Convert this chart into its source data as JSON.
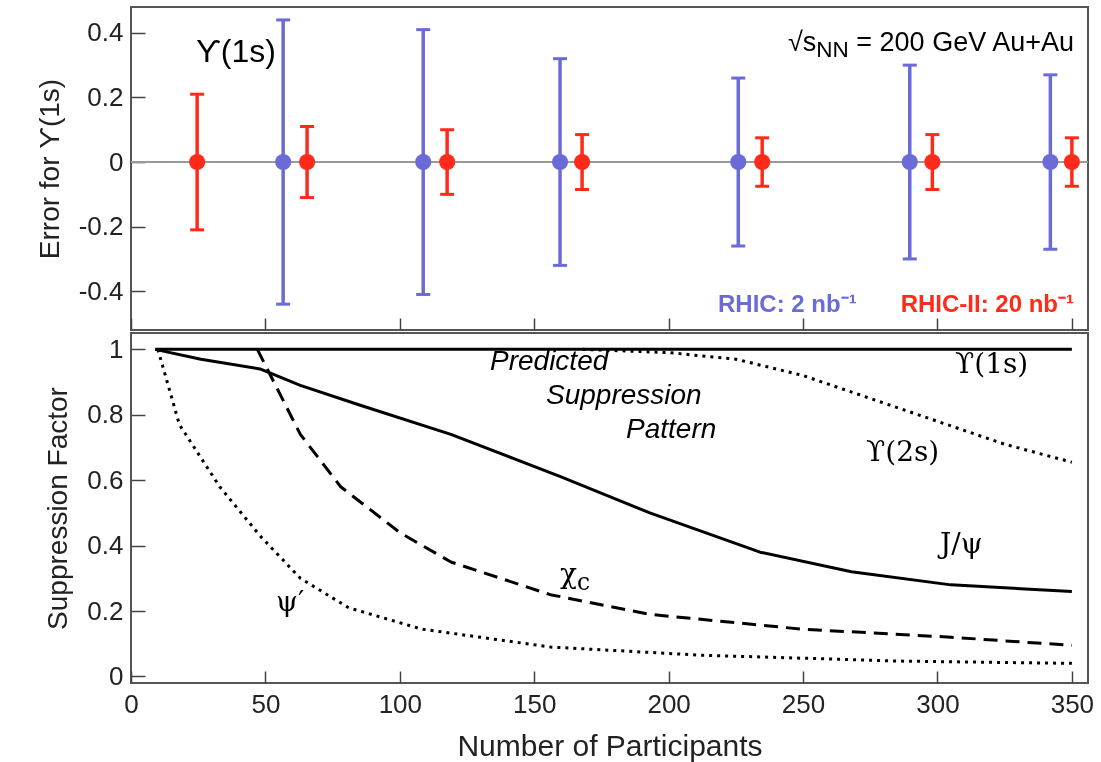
{
  "chart_data": [
    {
      "type": "scatter",
      "ylabel": "Error for ϒ(1s)",
      "xlim": [
        0,
        356
      ],
      "xticks": [
        0,
        50,
        100,
        150,
        200,
        250,
        300,
        350
      ],
      "ylim": [
        -0.52,
        0.48
      ],
      "yticks": [
        -0.4,
        -0.2,
        0,
        0.2,
        0.4
      ],
      "tick_labels": "y",
      "marker": "circle",
      "annotations": [
        "ϒ(1s)",
        "√s$_{NN}$ = 200 GeV Au+Au"
      ],
      "ref_lines": [
        {
          "axis": "y",
          "value": 0,
          "color": "#999999"
        }
      ],
      "series": [
        {
          "name": "RHIC: 2 nb⁻¹",
          "color": "#6b6bd8",
          "x": [
            56.6,
            108.7,
            159.6,
            225.9,
            289.7,
            342
          ],
          "values": [
            0,
            0,
            0,
            0,
            0,
            0
          ],
          "errors": [
            0.44,
            0.41,
            0.32,
            0.26,
            0.3,
            0.27
          ]
        },
        {
          "name": "RHIC-II: 20 nb⁻¹",
          "color": "#ff2a1a",
          "x": [
            24.6,
            65.5,
            117.6,
            167.8,
            234.8,
            298.1,
            350
          ],
          "values": [
            0,
            0,
            0,
            0,
            0,
            0,
            0
          ],
          "errors": [
            0.21,
            0.11,
            0.1,
            0.085,
            0.075,
            0.085,
            0.075
          ]
        }
      ]
    },
    {
      "type": "line",
      "xlabel": "Number of Participants",
      "ylabel": "Suppression Factor",
      "xlim": [
        0,
        356
      ],
      "xticks": [
        0,
        50,
        100,
        150,
        200,
        250,
        300,
        350
      ],
      "ylim": [
        -0.02,
        1.05
      ],
      "yticks": [
        0,
        0.2,
        0.4,
        0.6,
        0.8,
        1
      ],
      "marker": "none",
      "annotations": [
        "Predicted Suppression Pattern"
      ],
      "series": [
        {
          "name": "ϒ(1s)",
          "color": "#000000",
          "line_style": "solid",
          "x": [
            9,
            350
          ],
          "values": [
            1,
            1
          ]
        },
        {
          "name": "ϒ(2s)",
          "color": "#000000",
          "line_style": "dotted",
          "x": [
            168,
            200,
            225,
            250,
            275,
            300,
            325,
            350
          ],
          "values": [
            1.0,
            0.99,
            0.97,
            0.92,
            0.85,
            0.78,
            0.71,
            0.655
          ]
        },
        {
          "name": "J/ψ",
          "color": "#000000",
          "line_style": "solid",
          "x": [
            9,
            26,
            48,
            63,
            85,
            119,
            160,
            193,
            234,
            268,
            305,
            350
          ],
          "values": [
            1,
            0.97,
            0.94,
            0.89,
            0.83,
            0.74,
            0.61,
            0.5,
            0.38,
            0.32,
            0.28,
            0.26
          ]
        },
        {
          "name": "χ$_{c}$",
          "color": "#000000",
          "line_style": "dashed",
          "x": [
            47,
            63,
            78,
            100,
            119,
            156,
            193,
            249,
            305,
            350
          ],
          "values": [
            1,
            0.74,
            0.58,
            0.44,
            0.35,
            0.25,
            0.19,
            0.145,
            0.12,
            0.095
          ]
        },
        {
          "name": "ψ′",
          "color": "#000000",
          "line_style": "dotted",
          "x": [
            10,
            18,
            33,
            48,
            63,
            81,
            108,
            156,
            212,
            286,
            350
          ],
          "values": [
            1,
            0.77,
            0.58,
            0.43,
            0.3,
            0.21,
            0.145,
            0.09,
            0.065,
            0.047,
            0.04
          ]
        }
      ]
    }
  ]
}
